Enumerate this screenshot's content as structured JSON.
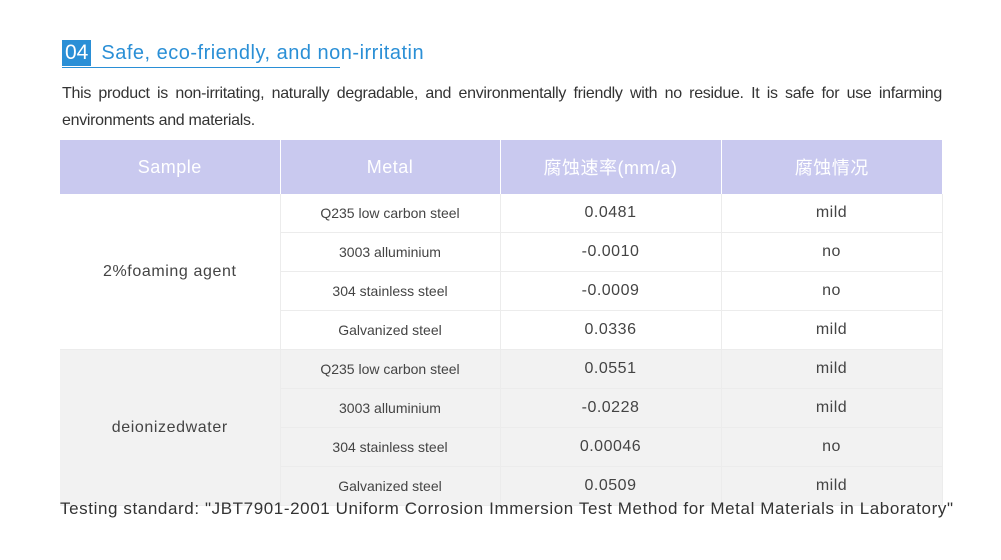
{
  "heading": {
    "number": "04",
    "title": "Safe, eco-friendly, and non-irritatin"
  },
  "intro": "This product is non-irritating, naturally degradable, and environmentally friendly with no residue. It is safe for use infarming environments and materials.",
  "table": {
    "headers": [
      "Sample",
      "Metal",
      "腐蚀速率(mm/a)",
      "腐蚀情况"
    ],
    "groups": [
      {
        "sample": "2%foaming agent",
        "rows": [
          {
            "metal": "Q235  low carbon steel",
            "rate": "0.0481",
            "status": "mild"
          },
          {
            "metal": "3003 alluminium",
            "rate": "-0.0010",
            "status": "no"
          },
          {
            "metal": "304 stainless steel",
            "rate": "-0.0009",
            "status": "no"
          },
          {
            "metal": "Galvanized steel",
            "rate": "0.0336",
            "status": "mild"
          }
        ]
      },
      {
        "sample": "deionizedwater",
        "rows": [
          {
            "metal": "Q235 low carbon steel",
            "rate": "0.0551",
            "status": "mild"
          },
          {
            "metal": "3003 alluminium",
            "rate": "-0.0228",
            "status": "mild"
          },
          {
            "metal": "304 stainless steel",
            "rate": "0.00046",
            "status": "no"
          },
          {
            "metal": "Galvanized steel",
            "rate": "0.0509",
            "status": "mild"
          }
        ]
      }
    ]
  },
  "footer": "Testing standard: \"JBT7901-2001 Uniform Corrosion Immersion Test Method for Metal Materials in Laboratory\""
}
